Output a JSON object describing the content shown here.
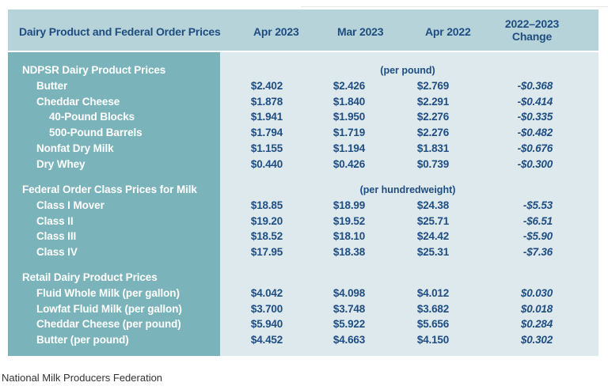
{
  "header": {
    "title": "Dairy Product and Federal Order Prices",
    "col1": "Apr 2023",
    "col2": "Mar 2023",
    "col3": "Apr 2022",
    "col4_line1": "2022–2023",
    "col4_line2": "Change"
  },
  "sections": [
    {
      "title": "NDPSR Dairy Product Prices",
      "unit": "(per pound)",
      "rows": [
        {
          "label": "Butter",
          "v": [
            "$2.402",
            "$2.426",
            "$2.769",
            "-$0.368"
          ]
        },
        {
          "label": "Cheddar Cheese",
          "v": [
            "$1.878",
            "$1.840",
            "$2.291",
            "-$0.414"
          ]
        },
        {
          "label": "40-Pound Blocks",
          "v": [
            "$1.941",
            "$1.950",
            "$2.276",
            "-$0.335"
          ]
        },
        {
          "label": "500-Pound Barrels",
          "v": [
            "$1.794",
            "$1.719",
            "$2.276",
            "-$0.482"
          ]
        },
        {
          "label": "Nonfat Dry Milk",
          "v": [
            "$1.155",
            "$1.194",
            "$1.831",
            "-$0.676"
          ]
        },
        {
          "label": "Dry Whey",
          "v": [
            "$0.440",
            "$0.426",
            "$0.739",
            "-$0.300"
          ]
        }
      ]
    },
    {
      "title": "Federal Order Class Prices for Milk",
      "unit": "(per hundredweight)",
      "rows": [
        {
          "label": "Class I Mover",
          "v": [
            "$18.85",
            "$18.99",
            "$24.38",
            "-$5.53"
          ]
        },
        {
          "label": "Class II",
          "v": [
            "$19.20",
            "$19.52",
            "$25.71",
            "-$6.51"
          ]
        },
        {
          "label": "Class III",
          "v": [
            "$18.52",
            "$18.10",
            "$24.42",
            "-$5.90"
          ]
        },
        {
          "label": "Class IV",
          "v": [
            "$17.95",
            "$18.38",
            "$25.31",
            "-$7.36"
          ]
        }
      ]
    },
    {
      "title": "Retail Dairy Product Prices",
      "unit": "",
      "rows": [
        {
          "label": "Fluid Whole Milk (per gallon)",
          "v": [
            "$4.042",
            "$4.098",
            "$4.012",
            "$0.030"
          ]
        },
        {
          "label": "Lowfat Fluid Milk (per gallon)",
          "v": [
            "$3.700",
            "$3.748",
            "$3.682",
            "$0.018"
          ]
        },
        {
          "label": "Cheddar Cheese (per pound)",
          "v": [
            "$5.940",
            "$5.922",
            "$5.656",
            "$0.284"
          ]
        },
        {
          "label": "Butter (per pound)",
          "v": [
            "$4.452",
            "$4.663",
            "$4.150",
            "$0.302"
          ]
        }
      ]
    }
  ],
  "source": "National Milk Producers Federation",
  "colors": {
    "header_bg": "#b5d3d8",
    "label_col_bg": "#7ab4ba",
    "body_bg": "#dde9ec",
    "value_text": "#1f4d82"
  }
}
